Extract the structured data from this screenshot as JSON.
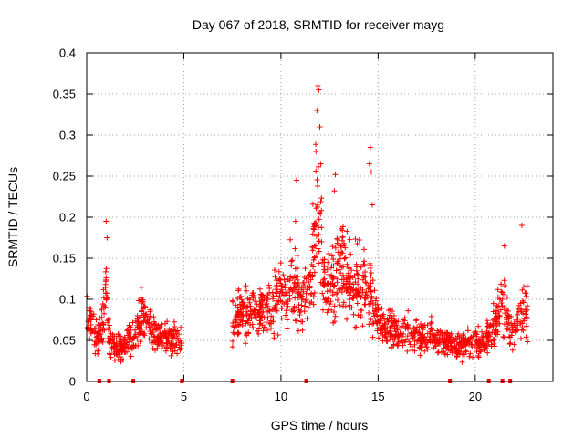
{
  "chart_data": {
    "type": "scatter",
    "title": "Day 067 of 2018, SRMTID for receiver mayg",
    "xlabel": "GPS time / hours",
    "ylabel": "SRMTID / TECUs",
    "xlim": [
      0,
      24
    ],
    "ylim": [
      0,
      0.4
    ],
    "xticks": [
      0,
      5,
      10,
      15,
      20
    ],
    "xtick_labels": [
      "0",
      "5",
      "10",
      "15",
      "20"
    ],
    "yticks": [
      0,
      0.05,
      0.1,
      0.15,
      0.2,
      0.25,
      0.3,
      0.35,
      0.4
    ],
    "ytick_labels": [
      "0",
      "0.05",
      "0.1",
      "0.15",
      "0.2",
      "0.25",
      "0.3",
      "0.35",
      "0.4"
    ],
    "grid": true,
    "marker": "+",
    "series_color": "#ff0000",
    "data_gap_hours": [
      4.9,
      7.5
    ],
    "zero_markers_x": [
      0.65,
      1.15,
      2.4,
      4.9,
      7.5,
      11.3,
      18.7,
      20.7,
      21.4,
      21.8
    ],
    "envelope": [
      {
        "x": 0.0,
        "y": 0.085
      },
      {
        "x": 0.3,
        "y": 0.075
      },
      {
        "x": 0.6,
        "y": 0.05
      },
      {
        "x": 0.9,
        "y": 0.08
      },
      {
        "x": 1.0,
        "y": 0.12
      },
      {
        "x": 1.15,
        "y": 0.05
      },
      {
        "x": 1.5,
        "y": 0.04
      },
      {
        "x": 2.0,
        "y": 0.045
      },
      {
        "x": 2.5,
        "y": 0.055
      },
      {
        "x": 2.8,
        "y": 0.085
      },
      {
        "x": 3.3,
        "y": 0.065
      },
      {
        "x": 3.8,
        "y": 0.05
      },
      {
        "x": 4.2,
        "y": 0.055
      },
      {
        "x": 4.8,
        "y": 0.05
      },
      {
        "x": 7.5,
        "y": 0.075
      },
      {
        "x": 8.0,
        "y": 0.08
      },
      {
        "x": 8.7,
        "y": 0.085
      },
      {
        "x": 9.3,
        "y": 0.09
      },
      {
        "x": 10.0,
        "y": 0.1
      },
      {
        "x": 10.5,
        "y": 0.12
      },
      {
        "x": 11.0,
        "y": 0.1
      },
      {
        "x": 11.5,
        "y": 0.11
      },
      {
        "x": 11.8,
        "y": 0.2
      },
      {
        "x": 12.0,
        "y": 0.2
      },
      {
        "x": 12.3,
        "y": 0.1
      },
      {
        "x": 12.8,
        "y": 0.13
      },
      {
        "x": 13.0,
        "y": 0.14
      },
      {
        "x": 13.6,
        "y": 0.12
      },
      {
        "x": 14.2,
        "y": 0.12
      },
      {
        "x": 14.6,
        "y": 0.1
      },
      {
        "x": 15.0,
        "y": 0.075
      },
      {
        "x": 15.5,
        "y": 0.065
      },
      {
        "x": 16.0,
        "y": 0.06
      },
      {
        "x": 16.6,
        "y": 0.06
      },
      {
        "x": 17.2,
        "y": 0.05
      },
      {
        "x": 17.8,
        "y": 0.055
      },
      {
        "x": 18.5,
        "y": 0.045
      },
      {
        "x": 19.0,
        "y": 0.045
      },
      {
        "x": 19.8,
        "y": 0.045
      },
      {
        "x": 20.5,
        "y": 0.05
      },
      {
        "x": 21.0,
        "y": 0.07
      },
      {
        "x": 21.4,
        "y": 0.1
      },
      {
        "x": 21.8,
        "y": 0.06
      },
      {
        "x": 22.2,
        "y": 0.07
      },
      {
        "x": 22.5,
        "y": 0.09
      },
      {
        "x": 22.7,
        "y": 0.08
      }
    ],
    "spikes": [
      {
        "x": 1.0,
        "y": 0.195
      },
      {
        "x": 1.05,
        "y": 0.175
      },
      {
        "x": 10.8,
        "y": 0.245
      },
      {
        "x": 10.75,
        "y": 0.195
      },
      {
        "x": 11.9,
        "y": 0.36
      },
      {
        "x": 11.95,
        "y": 0.355
      },
      {
        "x": 11.85,
        "y": 0.33
      },
      {
        "x": 12.0,
        "y": 0.31
      },
      {
        "x": 11.8,
        "y": 0.28
      },
      {
        "x": 12.05,
        "y": 0.265
      },
      {
        "x": 12.8,
        "y": 0.252
      },
      {
        "x": 12.75,
        "y": 0.232
      },
      {
        "x": 14.6,
        "y": 0.285
      },
      {
        "x": 14.55,
        "y": 0.265
      },
      {
        "x": 14.65,
        "y": 0.255
      },
      {
        "x": 14.7,
        "y": 0.215
      },
      {
        "x": 22.4,
        "y": 0.19
      },
      {
        "x": 21.5,
        "y": 0.165
      }
    ]
  }
}
